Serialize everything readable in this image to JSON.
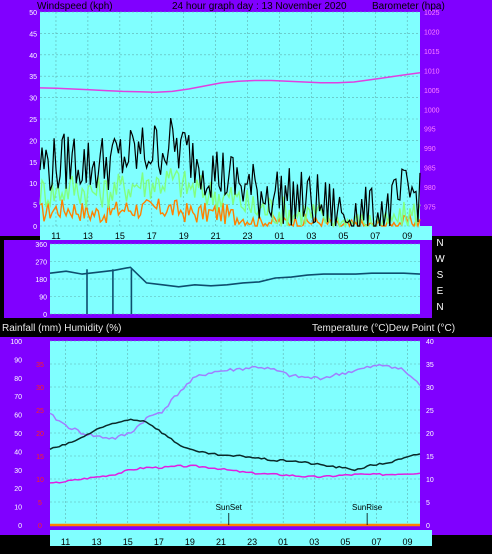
{
  "header": {
    "windspeed_label": "Windspeed (kph)",
    "title": "24 hour graph day : 13 November 2020",
    "barometer_label": "Barometer (hpa)"
  },
  "middle_labels": {
    "rain_humidity": "Rainfall (mm)  Humidity (%)",
    "temp_dew": "Temperature (°C)Dew Point (°C)"
  },
  "colors": {
    "plot_bg": "#80ffff",
    "side_panel": "#8000ff",
    "wind_gust": "#000000",
    "wind_avg": "#80ff80",
    "wind_low": "#ff8000",
    "pressure": "#e040e0",
    "direction": "#0e4e6e",
    "temperature": "#0a2a2a",
    "humidity": "#a080ff",
    "dew_point": "#e020e0",
    "rainfall": "#ff8000",
    "red_ticks": "#ff2020"
  },
  "chart_data": [
    {
      "type": "line",
      "x_ticks": [
        "11",
        "13",
        "15",
        "17",
        "19",
        "21",
        "23",
        "01",
        "03",
        "05",
        "07",
        "09"
      ],
      "ylabel_left": "Windspeed (kph)",
      "ylabel_right": "Barometer (hpa)",
      "ylim_left": [
        0,
        50
      ],
      "ylim_right": [
        970,
        1025
      ],
      "yticks_left": [
        0,
        5,
        10,
        15,
        20,
        25,
        30,
        35,
        40,
        45,
        50
      ],
      "yticks_right": [
        975,
        980,
        985,
        990,
        995,
        1000,
        1005,
        1010,
        1015,
        1020,
        1025
      ],
      "grid": true,
      "series": [
        {
          "name": "Wind gust",
          "axis": "left",
          "color": "wind_gust",
          "values": [
            15,
            14,
            16,
            14,
            15,
            16,
            17,
            18,
            19,
            17,
            14,
            12,
            10,
            8,
            8,
            7,
            6,
            5,
            3,
            3,
            2,
            3,
            7,
            8
          ]
        },
        {
          "name": "Wind speed",
          "axis": "left",
          "color": "wind_avg",
          "values": [
            8,
            8,
            9,
            8,
            8,
            9,
            10,
            10,
            11,
            9,
            8,
            7,
            6,
            4,
            4,
            3,
            3,
            2,
            1,
            1,
            1,
            1,
            2,
            3
          ]
        },
        {
          "name": "Wind low",
          "axis": "left",
          "color": "wind_low",
          "values": [
            3,
            4,
            4,
            3,
            3,
            4,
            4,
            4,
            4,
            3,
            3,
            3,
            2,
            1,
            1,
            1,
            1,
            1,
            0,
            0,
            0,
            0,
            1,
            1
          ]
        },
        {
          "name": "Barometer",
          "axis": "right",
          "color": "pressure",
          "values": [
            1005.5,
            1005.4,
            1005.2,
            1005,
            1004.8,
            1004.6,
            1004.5,
            1004.4,
            1004.6,
            1005.2,
            1006,
            1006.8,
            1007.2,
            1007.4,
            1007.4,
            1007.2,
            1007,
            1006.8,
            1006.8,
            1007,
            1007.6,
            1008.2,
            1008.8,
            1009.4
          ]
        }
      ]
    },
    {
      "type": "line",
      "right_labels": [
        "N",
        "W",
        "S",
        "E",
        "N"
      ],
      "ylim": [
        0,
        360
      ],
      "left_ticks": [
        "360",
        "270",
        "180",
        "90",
        "0"
      ],
      "grid": true,
      "series": [
        {
          "name": "Wind direction",
          "color": "direction",
          "values": [
            210,
            220,
            205,
            215,
            225,
            240,
            160,
            150,
            140,
            150,
            145,
            150,
            160,
            165,
            185,
            190,
            200,
            205,
            205,
            205,
            210,
            210,
            210,
            205
          ]
        }
      ]
    },
    {
      "type": "line",
      "x_ticks": [
        "11",
        "13",
        "15",
        "17",
        "19",
        "21",
        "23",
        "01",
        "03",
        "05",
        "07",
        "09"
      ],
      "ylim_left": [
        0,
        100
      ],
      "ylim_right": [
        0,
        40
      ],
      "yticks_left": [
        0,
        10,
        20,
        30,
        40,
        50,
        60,
        70,
        80,
        90,
        100
      ],
      "yticks_right": [
        0,
        5,
        10,
        15,
        20,
        25,
        30,
        35,
        40
      ],
      "red_ticks": [
        0,
        5,
        10,
        15,
        20,
        25,
        30,
        35
      ],
      "grid": true,
      "annotations": [
        {
          "text": "SunSet",
          "x_hour": 21.5
        },
        {
          "text": "SunRise",
          "x_hour": 6.4
        }
      ],
      "series": [
        {
          "name": "Humidity",
          "axis": "left",
          "color": "humidity",
          "values": [
            60,
            54,
            50,
            48,
            47,
            50,
            58,
            62,
            72,
            80,
            83,
            84,
            85,
            86,
            84,
            81,
            80,
            80,
            82,
            84,
            86,
            87,
            84,
            76
          ]
        },
        {
          "name": "Temperature",
          "axis": "right",
          "color": "temperature",
          "values": [
            16.5,
            17.5,
            19,
            21,
            22,
            23,
            22.5,
            20,
            17.5,
            16,
            15.5,
            15,
            15,
            14.5,
            14,
            14,
            13.5,
            13,
            12.5,
            12,
            13,
            13.5,
            14.5,
            15.5
          ]
        },
        {
          "name": "Dew Point",
          "axis": "right",
          "color": "dew_point",
          "values": [
            9,
            9.5,
            10,
            10.5,
            11,
            12,
            12.5,
            12.5,
            12.8,
            12.8,
            12.5,
            12,
            11.5,
            11.2,
            11,
            10.8,
            10.5,
            10.5,
            10.8,
            11,
            11,
            11,
            11.2,
            11.3
          ]
        },
        {
          "name": "Rainfall",
          "axis": "left",
          "color": "rainfall",
          "values": [
            0,
            0,
            0,
            0,
            0,
            0,
            0,
            0,
            0,
            0,
            0,
            0,
            0,
            0,
            0,
            0,
            0,
            0,
            0,
            0,
            0,
            0,
            0,
            0
          ]
        }
      ]
    }
  ]
}
